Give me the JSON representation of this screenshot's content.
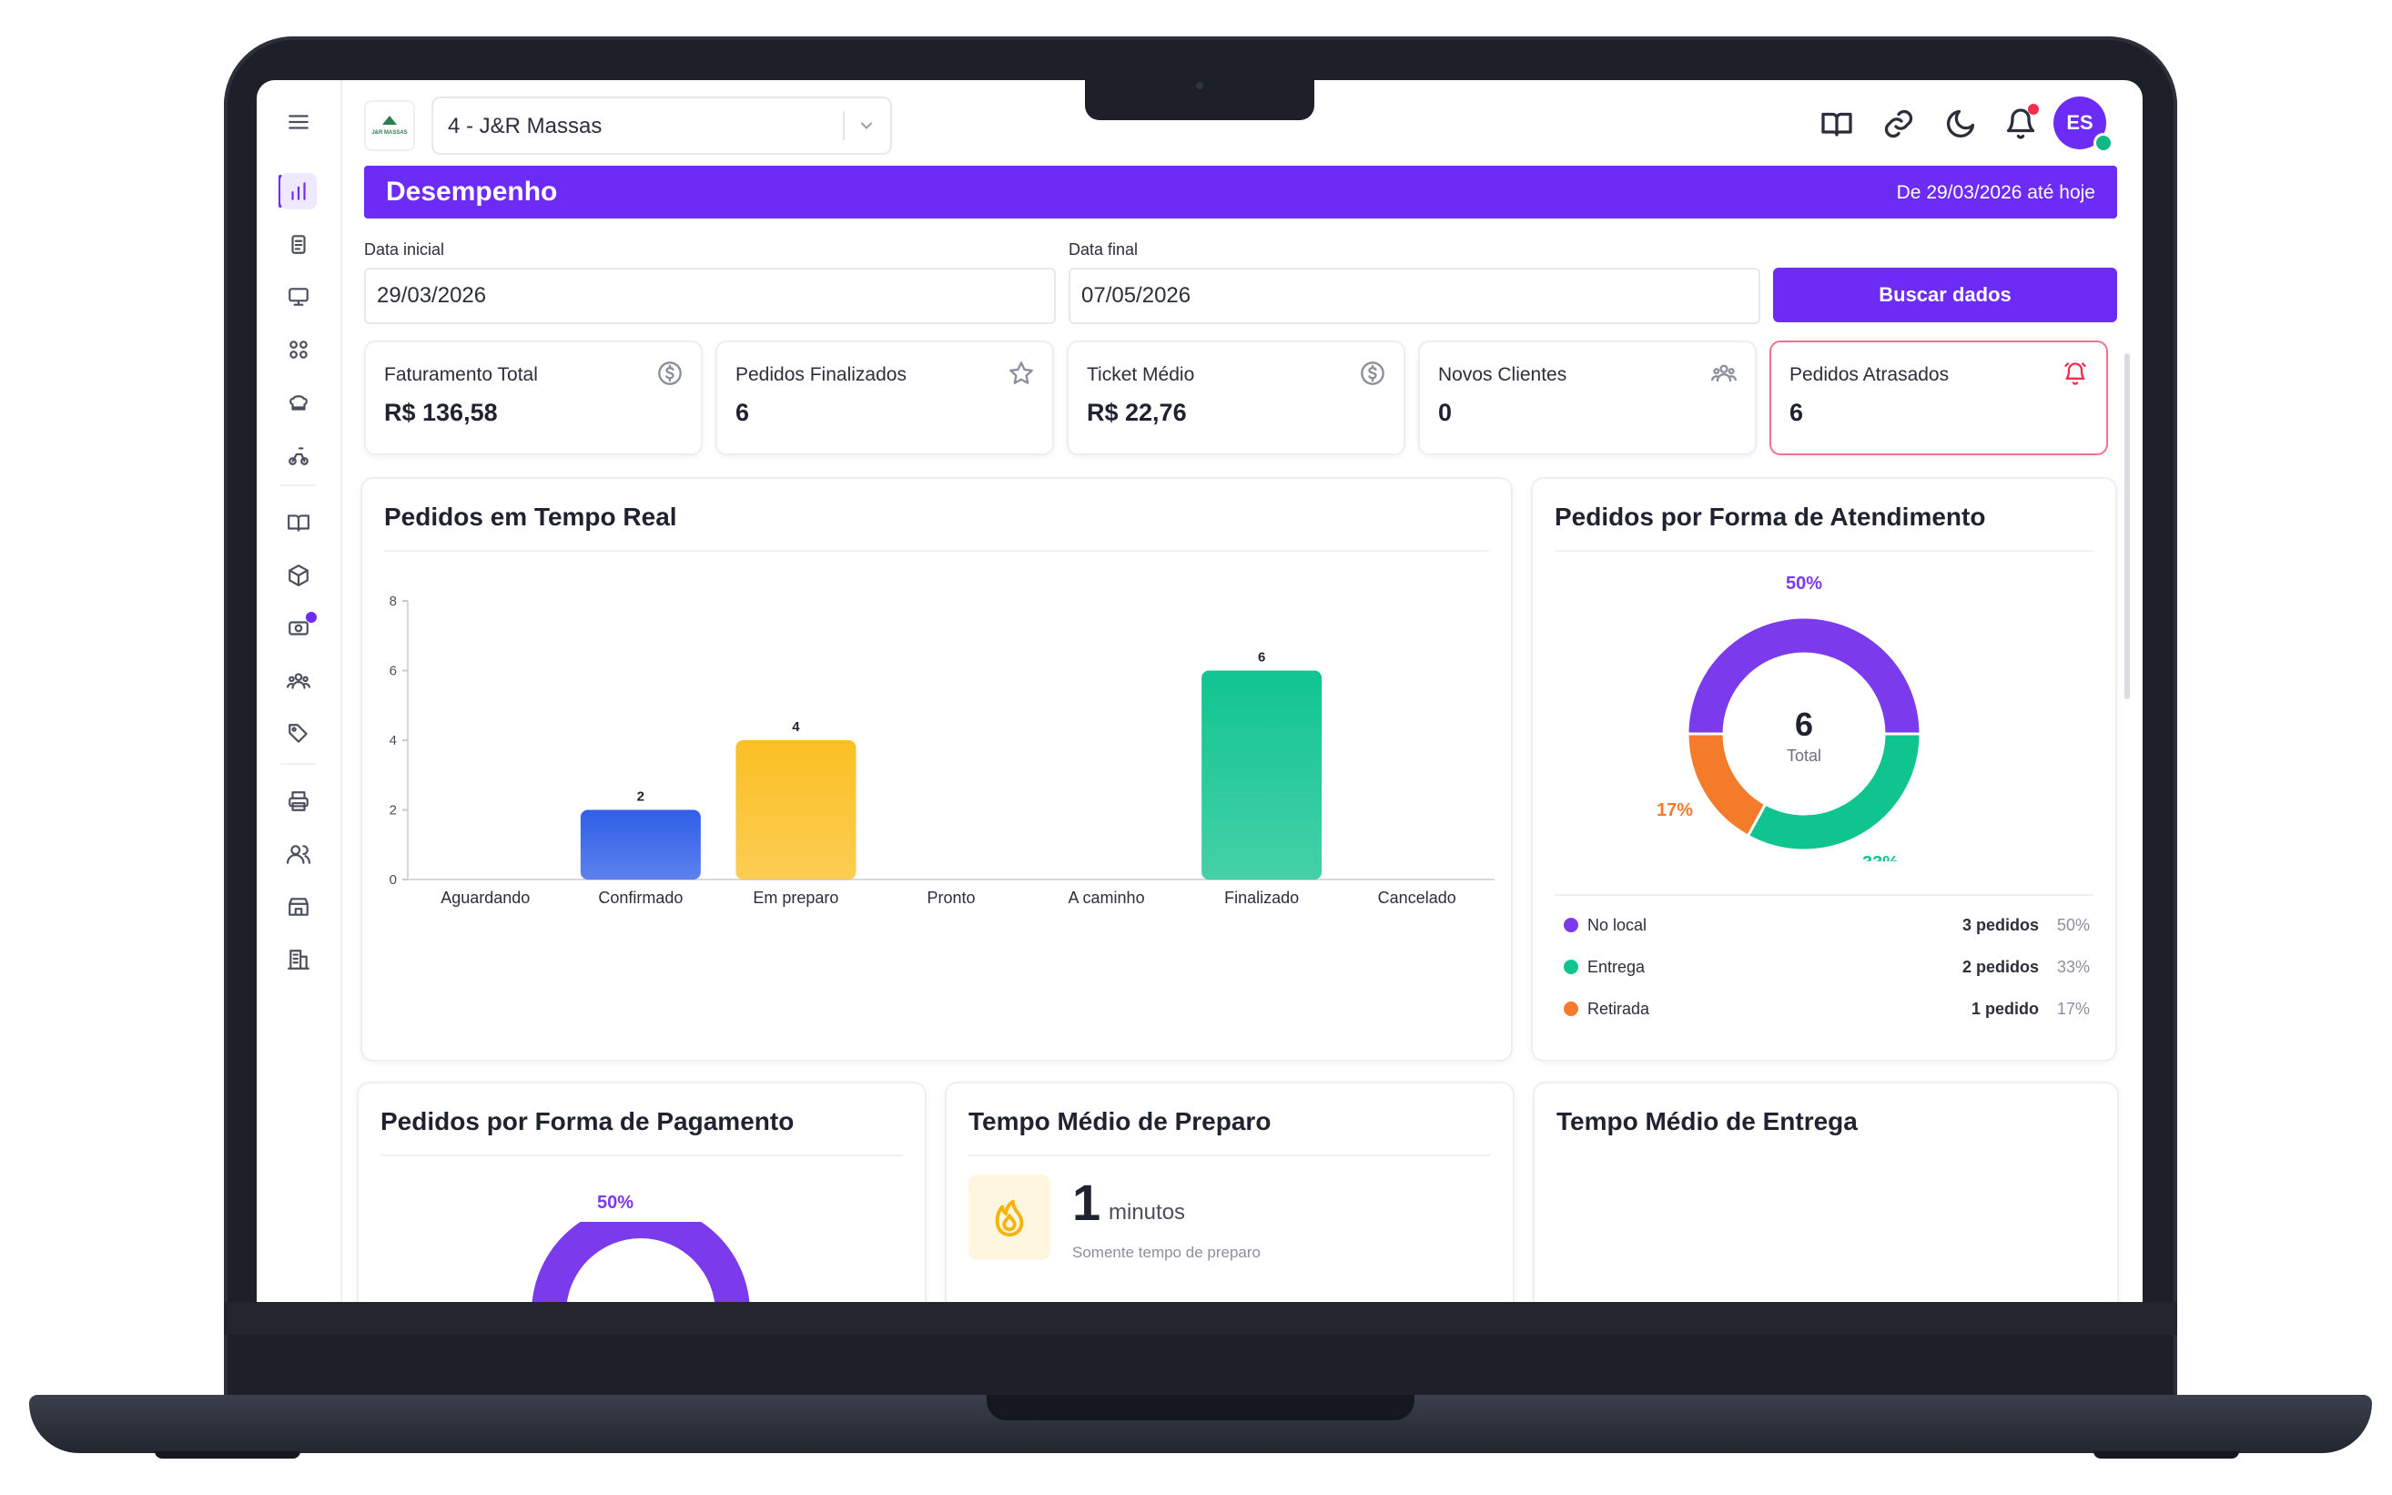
{
  "header": {
    "store": "4 - J&R Massas",
    "logo_text": "J&R MASSAS",
    "avatar_initials": "ES"
  },
  "banner": {
    "title": "Desempenho",
    "range": "De 29/03/2026 até hoje"
  },
  "filters": {
    "start_label": "Data inicial",
    "start_value": "29/03/2026",
    "end_label": "Data final",
    "end_value": "07/05/2026",
    "search_button": "Buscar dados"
  },
  "kpis": [
    {
      "label": "Faturamento Total",
      "value": "R$ 136,58",
      "icon": "dollar-circle-icon"
    },
    {
      "label": "Pedidos Finalizados",
      "value": "6",
      "icon": "star-icon"
    },
    {
      "label": "Ticket Médio",
      "value": "R$ 22,76",
      "icon": "dollar-circle-icon"
    },
    {
      "label": "Novos Clientes",
      "value": "0",
      "icon": "users-icon"
    },
    {
      "label": "Pedidos Atrasados",
      "value": "6",
      "icon": "alarm-bell-icon"
    }
  ],
  "realtime": {
    "title": "Pedidos em Tempo Real"
  },
  "service": {
    "title": "Pedidos por Forma de Atendimento",
    "total_value": "6",
    "total_label": "Total",
    "items": [
      {
        "name": "No local",
        "count": "3 pedidos",
        "pct": "50%",
        "color": "#7c3aed"
      },
      {
        "name": "Entrega",
        "count": "2 pedidos",
        "pct": "33%",
        "color": "#10c490"
      },
      {
        "name": "Retirada",
        "count": "1 pedido",
        "pct": "17%",
        "color": "#f37b2a"
      }
    ]
  },
  "payment": {
    "title": "Pedidos por Forma de Pagamento",
    "top_pct": "50%"
  },
  "prep": {
    "title": "Tempo Médio de Preparo",
    "value": "1",
    "unit": "minutos",
    "note": "Somente tempo de preparo"
  },
  "delivery": {
    "title": "Tempo Médio de Entrega"
  },
  "chart_data": [
    {
      "type": "bar",
      "categories": [
        "Aguardando",
        "Confirmado",
        "Em preparo",
        "Pronto",
        "A caminho",
        "Finalizado",
        "Cancelado"
      ],
      "values": [
        0,
        2,
        4,
        0,
        0,
        6,
        0
      ],
      "colors": [
        "#3b82f6",
        "#2f5ee8",
        "#fbbf24",
        "#3b82f6",
        "#3b82f6",
        "#10c490",
        "#3b82f6"
      ],
      "ylim": [
        0,
        8
      ],
      "yticks": [
        0,
        2,
        4,
        6,
        8
      ],
      "grid": false
    },
    {
      "type": "pie",
      "categories": [
        "No local",
        "Entrega",
        "Retirada"
      ],
      "values": [
        50,
        33,
        17
      ],
      "colors": [
        "#7c3aed",
        "#10c490",
        "#f37b2a"
      ]
    }
  ]
}
